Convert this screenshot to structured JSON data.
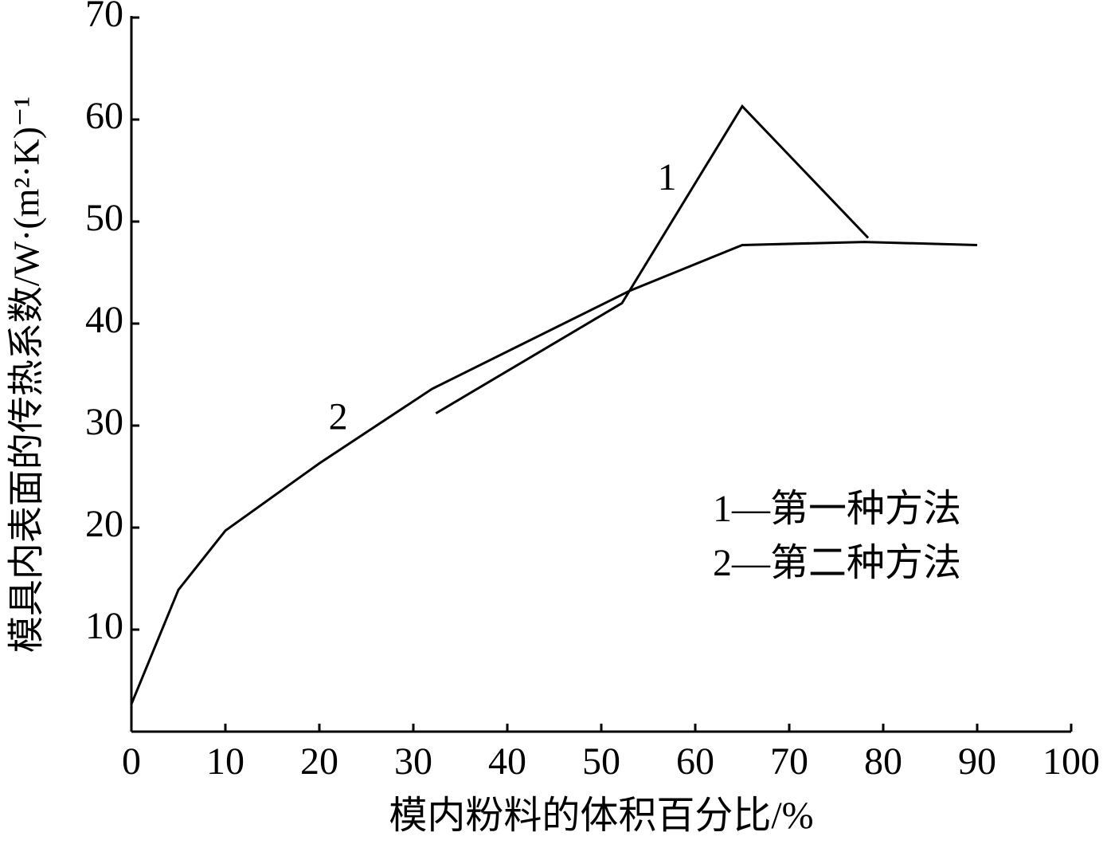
{
  "chart_data": {
    "type": "line",
    "xlabel": "模内粉料的体积百分比/%",
    "ylabel": "模具内表面的传热系数/W·(m²·K)⁻¹",
    "xlim": [
      0,
      100
    ],
    "xticks": [
      0,
      10,
      20,
      30,
      40,
      50,
      60,
      70,
      80,
      90,
      100
    ],
    "ylim": [
      0,
      70
    ],
    "yticks": [
      10,
      20,
      30,
      40,
      50,
      60,
      70
    ],
    "annotations": [
      "1",
      "2"
    ],
    "series": [
      {
        "name": "1—第一种方法",
        "color": "#000000",
        "x": [
          32.4,
          52.2,
          65.0,
          78.4
        ],
        "values": [
          31.2,
          42.0,
          61.3,
          48.4
        ]
      },
      {
        "name": "2—第二种方法",
        "color": "#000000",
        "x": [
          0,
          5,
          10,
          20,
          32,
          53,
          65,
          78,
          90
        ],
        "values": [
          2.7,
          13.9,
          19.7,
          26.3,
          33.6,
          43.2,
          47.7,
          48.0,
          47.7
        ]
      }
    ]
  }
}
